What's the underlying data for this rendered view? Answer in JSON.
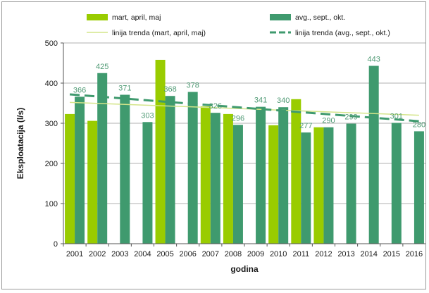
{
  "chart_data": {
    "type": "bar",
    "categories": [
      "2001",
      "2002",
      "2003",
      "2004",
      "2005",
      "2006",
      "2007",
      "2008",
      "2009",
      "2010",
      "2011",
      "2012",
      "2013",
      "2014",
      "2015",
      "2016"
    ],
    "series": [
      {
        "name": "mart, april, maj",
        "color": "#99cc00",
        "values": [
          323,
          306,
          null,
          null,
          458,
          null,
          342,
          323,
          null,
          295,
          360,
          290,
          null,
          null,
          null,
          null
        ],
        "show_labels": false
      },
      {
        "name": "avg., sept., okt.",
        "color": "#3f9a6e",
        "values": [
          366,
          425,
          371,
          303,
          368,
          378,
          326,
          296,
          341,
          340,
          277,
          290,
          299,
          443,
          301,
          280
        ],
        "labels": [
          "366",
          "425",
          "371",
          "303",
          "368",
          "378",
          "326",
          "296",
          "341",
          "340",
          "277",
          "290",
          "299",
          "443",
          "301",
          "280"
        ],
        "show_labels": true
      }
    ],
    "trendlines": [
      {
        "name": "linija trenda (mart, april, maj)",
        "color": "#d4e58a",
        "start": 352,
        "end": 320,
        "dashed": false
      },
      {
        "name": "linija trenda (avg., sept., okt.)",
        "color": "#3f9a6e",
        "start": 372,
        "end": 305,
        "dashed": true
      }
    ],
    "xlabel": "godina",
    "ylabel": "Eksploatacija (l/s)",
    "ylim": [
      0,
      500
    ],
    "yticks": [
      0,
      100,
      200,
      300,
      400,
      500
    ],
    "grid": true,
    "legend": "top"
  }
}
